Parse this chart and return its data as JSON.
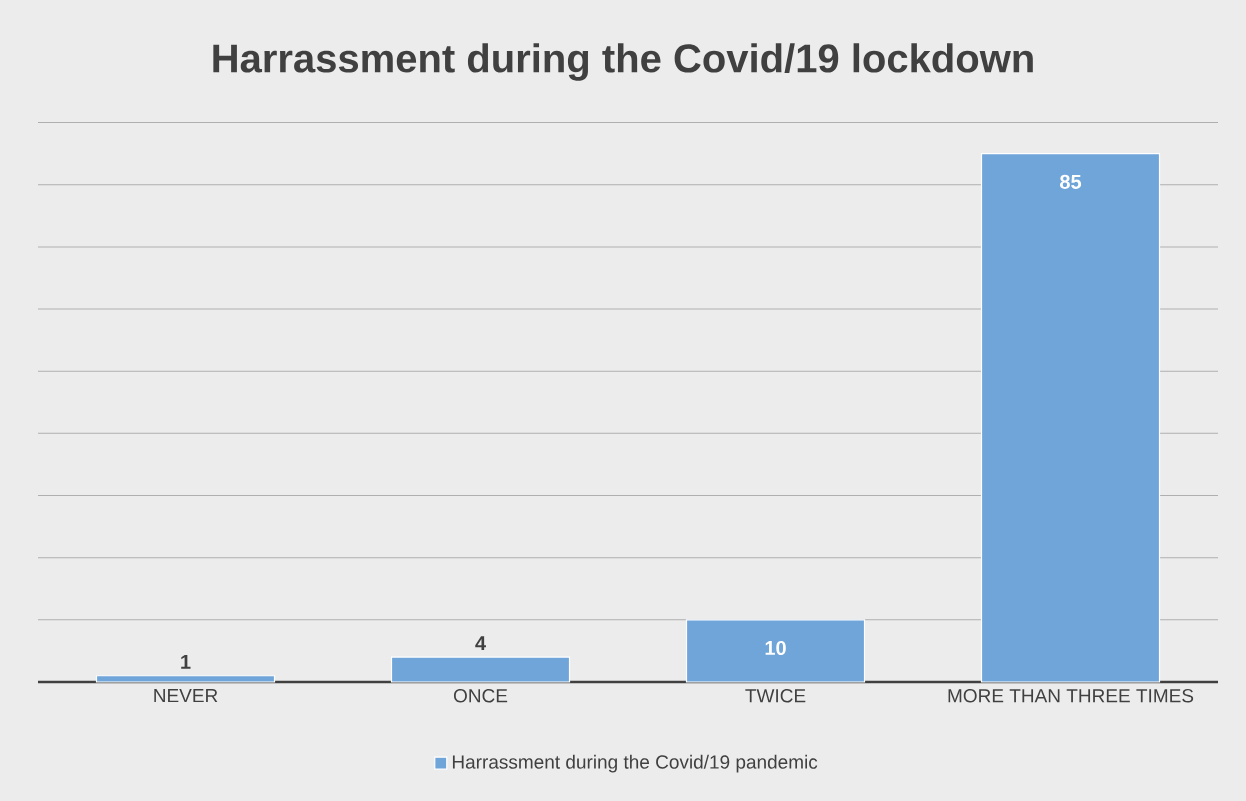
{
  "chart_data": {
    "type": "bar",
    "title": "Harrassment during the Covid/19 lockdown",
    "categories": [
      "NEVER",
      "ONCE",
      "TWICE",
      "MORE THAN THREE TIMES"
    ],
    "series": [
      {
        "name": "Harrassment during the Covid/19 pandemic",
        "color": "#6fa5d8",
        "values": [
          1,
          4,
          10,
          85
        ]
      }
    ],
    "tick_labels": "x",
    "grid": "y",
    "data_labels": true,
    "legend": "bottom"
  }
}
